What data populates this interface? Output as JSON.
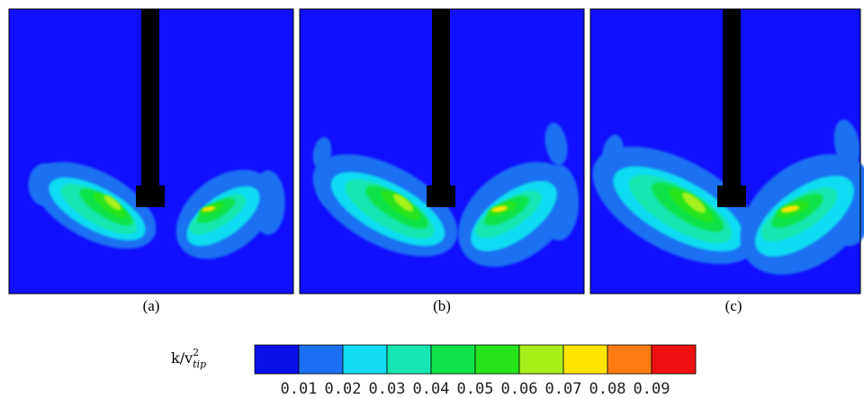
{
  "panels": [
    {
      "id": "a",
      "label": "(a)",
      "blob_scale": 0.85
    },
    {
      "id": "b",
      "label": "(b)",
      "blob_scale": 1.0
    },
    {
      "id": "c",
      "label": "(c)",
      "blob_scale": 1.15
    }
  ],
  "colorbar": {
    "label_main": "k/v",
    "label_sup": "2",
    "label_sub": "tip",
    "ticks": [
      "0.01",
      "0.02",
      "0.03",
      "0.04",
      "0.05",
      "0.06",
      "0.07",
      "0.08",
      "0.09"
    ],
    "colors": [
      "#0a10e8",
      "#1a6ff2",
      "#11dcf2",
      "#16e7b0",
      "#10e24a",
      "#26e41c",
      "#a8f01a",
      "#ffe400",
      "#ff7a10",
      "#ee1010"
    ]
  },
  "colors": {
    "background": "#1010ff",
    "shaft": "#000000"
  }
}
